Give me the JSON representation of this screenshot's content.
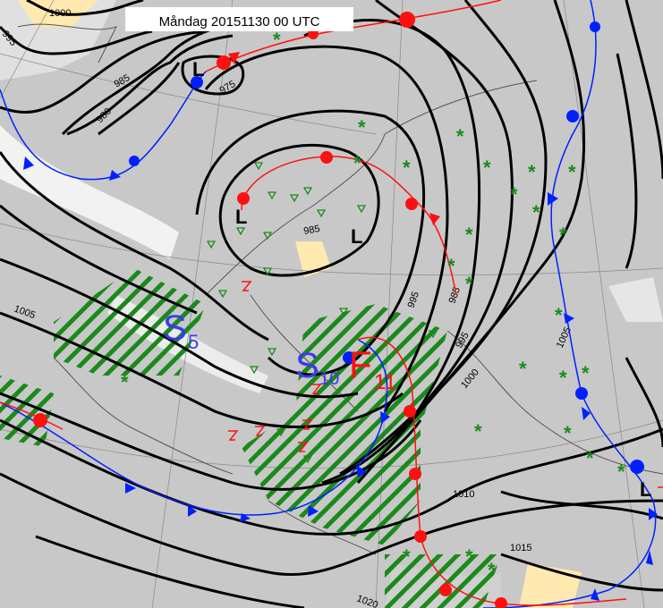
{
  "title": "Måndag 20151130 00 UTC",
  "colors": {
    "background": "#c8c8c8",
    "land": "#bebebe",
    "cloud": "#ffffff",
    "isobar": "#000000",
    "cold_front": "#0020ff",
    "warm_front": "#ff1010",
    "precip": "#1a8a1a",
    "sunshine": "#ffe9b0"
  },
  "isobar_labels": [
    "1000",
    "995",
    "985",
    "980",
    "975",
    "1005",
    "985",
    "995",
    "985",
    "995",
    "1000",
    "1005",
    "1010",
    "1015",
    "1020"
  ],
  "pressure_systems": [
    {
      "label": "L",
      "type": "low"
    },
    {
      "label": "L",
      "type": "low"
    },
    {
      "label": "L",
      "type": "low"
    },
    {
      "label": "L",
      "type": "low"
    }
  ],
  "wind_labels": [
    {
      "letter": "S",
      "value": "5"
    },
    {
      "letter": "S",
      "value": "10"
    },
    {
      "letter": "F",
      "value": "11"
    }
  ],
  "symbols": {
    "snow": "asterisk-icon",
    "showers": "triangle-down-icon",
    "thunder": "lightning-icon",
    "rain": "hatched-area"
  }
}
